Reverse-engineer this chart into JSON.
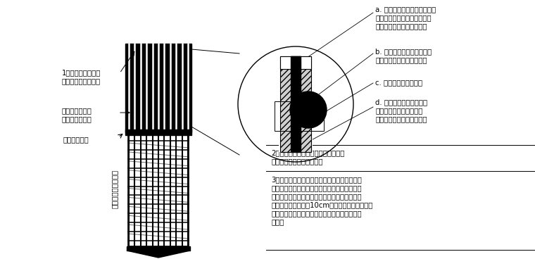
{
  "bg_color": "#ffffff",
  "text_color": "#000000",
  "figsize": [
    7.6,
    3.68
  ],
  "dpi": 100,
  "label1_line1": "1、桩顶所有主筋必",
  "label1_line2": "须顺直，不可弯折。",
  "label2_line1": "破桩位置（即截",
  "label2_line2": "断箍所在位置）",
  "label3": "设计桩顶标高",
  "label4": "基桩嵌入承台的部分",
  "note_a_line1": "a. 主筋的复合脱松套，必须宽",
  "note_a_line2": "松，不得紧贴或握裹带肋之主",
  "note_a_line3": "筋，否则日后桩头提不动。",
  "note_b_line1": "b. 绕主筋外侧水平一圈的截",
  "note_b_line2": "断箍，将复合脱松套勒住。",
  "note_c": "c. 用扎丝扎紧截断箍。",
  "note_d_line1": "d. 主筋的复合脱松套，其",
  "note_d_line2": "下方必须略深一点，水平",
  "note_d_line3": "的截断箍，正好将其绕住。",
  "note2_line1": "2、破桩位置以上的所有主筋，外套复",
  "note2_line2": "合脱松套，用橡皮筋扎紧。",
  "note3_line1": "3、在需破桩头的高程位置，绕桩周一圈，预埋",
  "note3_line2": "截断箍（即钢丝绳外套复合脱松套，绕桩的主筋",
  "note3_line3": "外侧一圈，内填细砂或其他填充物，以占体积。",
  "note3_line4": "钢丝绳端头余留长度10cm，以便日后提拎）。将",
  "note3_line5": "截断箍绑在主筋的保险套上并压住，此处用扎丝",
  "note3_line6": "扎紧。"
}
